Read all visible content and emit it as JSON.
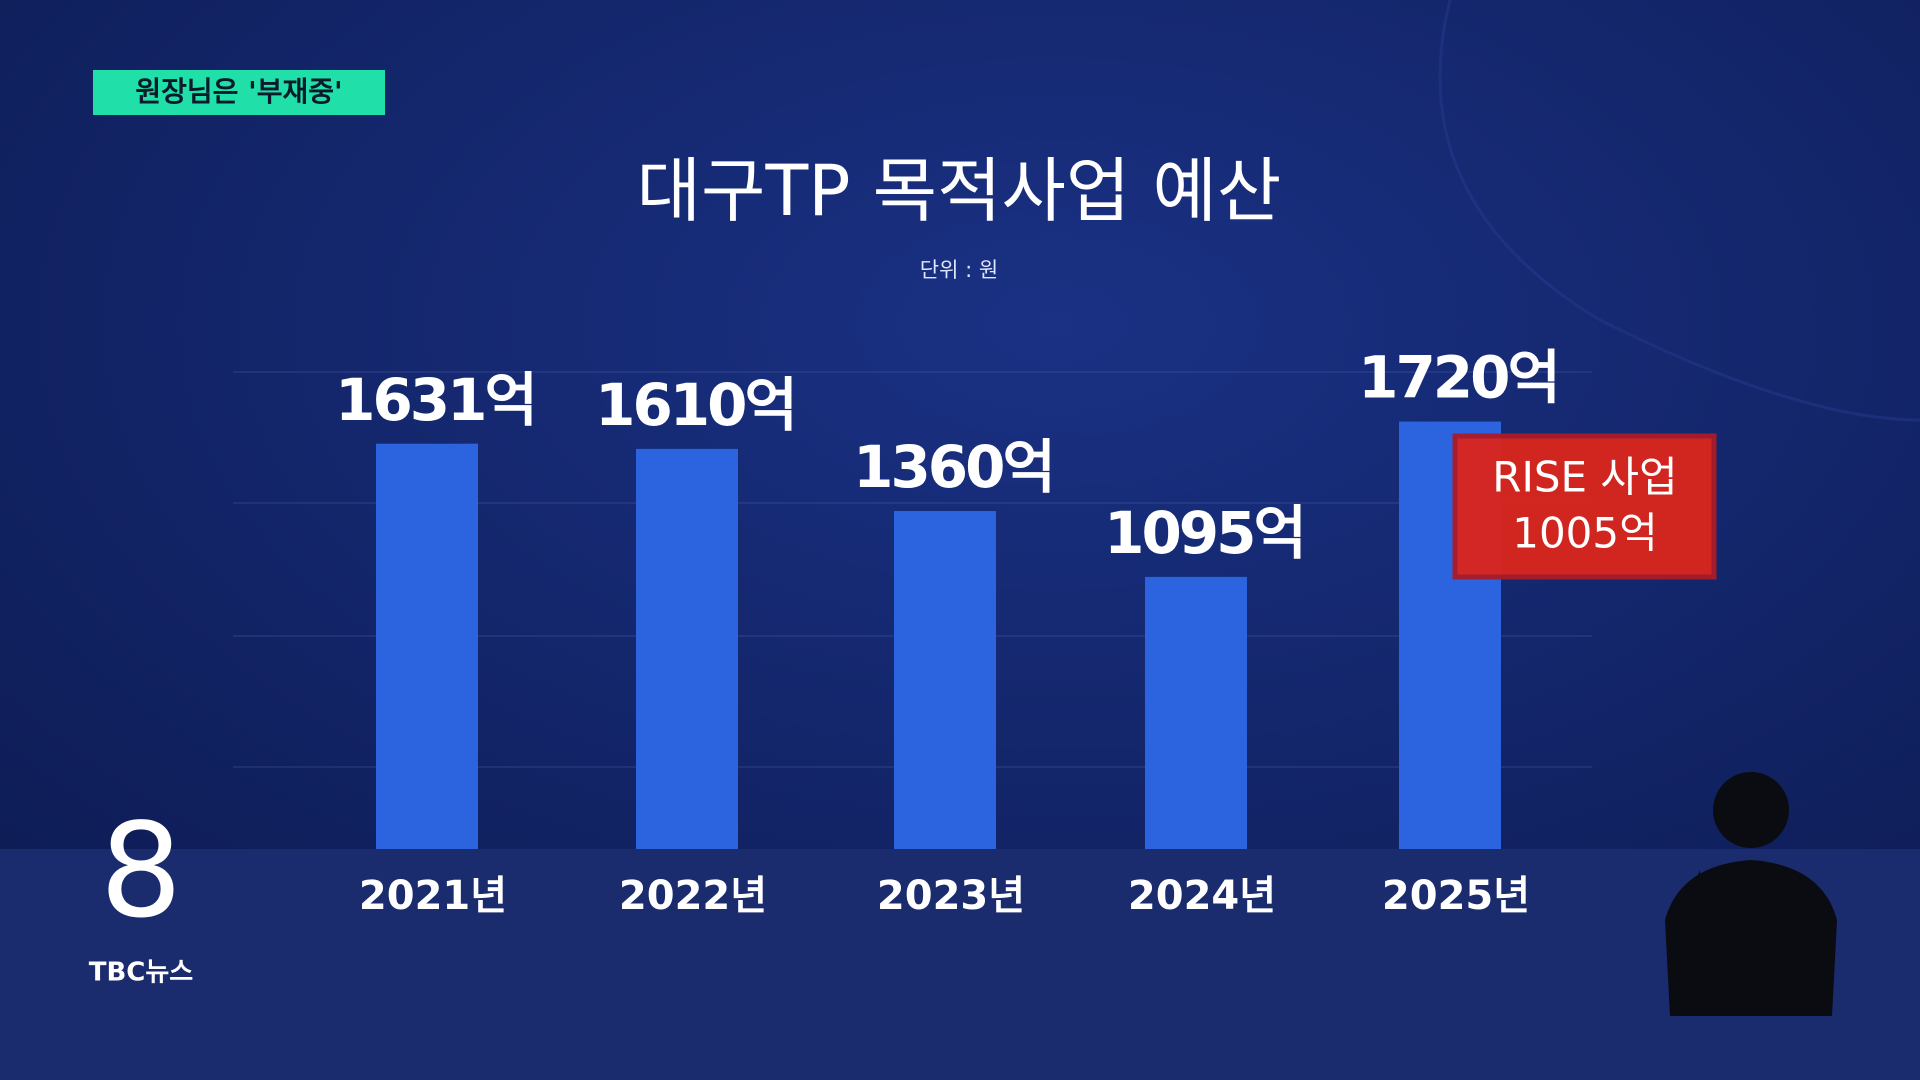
{
  "caption": "원장님은 '부재중'",
  "logo": {
    "mark": "8",
    "text": "TBC뉴스"
  },
  "chart_data": {
    "type": "bar",
    "title": "대구TP 목적사업 예산",
    "subtitle": "단위 : 원",
    "categories": [
      "2021년",
      "2022년",
      "2023년",
      "2024년",
      "2025년"
    ],
    "values": [
      1631,
      1610,
      1360,
      1095,
      1720
    ],
    "value_labels": [
      "1631억",
      "1610억",
      "1360억",
      "1095억",
      "1720억"
    ],
    "color": "#2c64e0",
    "ylim": [
      0,
      2000
    ],
    "annotation": [
      "RISE 사업",
      "1005억"
    ]
  }
}
